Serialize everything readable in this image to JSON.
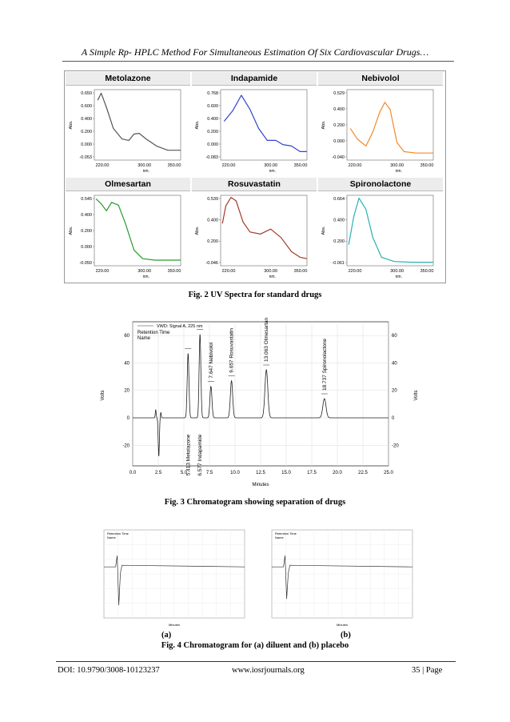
{
  "header": {
    "running_title": "A Simple Rp- HPLC Method For Simultaneous Estimation Of Six Cardiovascular Drugs…"
  },
  "figure2": {
    "caption": "Fig. 2 UV Spectra for standard drugs",
    "panels": [
      {
        "title": "Metolazone",
        "color": "#555555",
        "yticks": [
          "0.650",
          "0.600",
          "0.400",
          "0.200",
          "0.000",
          "-0.053"
        ],
        "xticks": [
          "220.00",
          "300.00",
          "350.00"
        ],
        "ylabel": "Abs.",
        "xlabel": "nm."
      },
      {
        "title": "Indapamide",
        "color": "#3344cc",
        "yticks": [
          "0.768",
          "0.600",
          "0.400",
          "0.200",
          "0.000",
          "-0.083"
        ],
        "xticks": [
          "220.00",
          "300.00",
          "350.00"
        ],
        "ylabel": "Abs.",
        "xlabel": "nm."
      },
      {
        "title": "Nebivolol",
        "color": "#f08a2c",
        "yticks": [
          "0.529",
          "0.400",
          "0.200",
          "0.000",
          "-0.040"
        ],
        "xticks": [
          "220.00",
          "300.00",
          "350.00"
        ],
        "ylabel": "Abs.",
        "xlabel": "nm."
      },
      {
        "title": "Olmesartan",
        "color": "#2a9a2a",
        "yticks": [
          "0.545",
          "0.400",
          "0.200",
          "0.000",
          "-0.050"
        ],
        "xticks": [
          "220.00",
          "300.00",
          "350.00"
        ],
        "ylabel": "Abs.",
        "xlabel": "nm."
      },
      {
        "title": "Rosuvastatin",
        "color": "#a33a2a",
        "yticks": [
          "0.539",
          "0.400",
          "0.200",
          "-0.046"
        ],
        "xticks": [
          "220.00",
          "300.00",
          "350.00"
        ],
        "ylabel": "Abs.",
        "xlabel": "nm."
      },
      {
        "title": "Spironolactone",
        "color": "#2ab0b0",
        "yticks": [
          "0.664",
          "0.400",
          "0.200",
          "-0.061"
        ],
        "xticks": [
          "220.00",
          "300.00",
          "350.00"
        ],
        "ylabel": "Abs.",
        "xlabel": "nm."
      }
    ]
  },
  "figure3": {
    "caption": "Fig. 3 Chromatogram showing separation of drugs",
    "legend": "VWD: Signal A, 225 nm",
    "legend_sub": [
      "Retention Time",
      "Name"
    ],
    "ylabel": "Volts",
    "xlabel": "Minutes",
    "xticks": [
      "0.0",
      "2.5",
      "5.0",
      "7.5",
      "10.0",
      "12.5",
      "15.0",
      "17.5",
      "20.0",
      "22.5",
      "25.0"
    ],
    "yticks": [
      "60",
      "40",
      "20",
      "0",
      "-20"
    ],
    "peaks": [
      {
        "label": "5.413 Metolazone"
      },
      {
        "label": "6.577 Indapamide"
      },
      {
        "label": "7.647 Nebivolol"
      },
      {
        "label": "9.657 Rosuvastatin"
      },
      {
        "label": "13.063 Olmesartan"
      },
      {
        "label": "18.737 Spironolactone"
      }
    ]
  },
  "chart_data": {
    "type": "line",
    "xlabel": "Minutes",
    "ylabel": "Volts",
    "xlim": [
      0,
      25
    ],
    "ylim": [
      -35,
      70
    ],
    "series": [
      {
        "x": [
          5.413,
          6.577,
          7.647,
          9.657,
          13.063,
          18.737
        ],
        "values": [
          47,
          61,
          23,
          27,
          35,
          14
        ]
      }
    ]
  },
  "figure4": {
    "panel_a": "(a)",
    "panel_b": "(b)",
    "caption": "Fig. 4 Chromatogram for (a) diluent and (b) placebo"
  },
  "footer": {
    "doi": "DOI: 10.9790/3008-10123237",
    "site": "www.iosrjournals.org",
    "page": "35 | Page"
  }
}
